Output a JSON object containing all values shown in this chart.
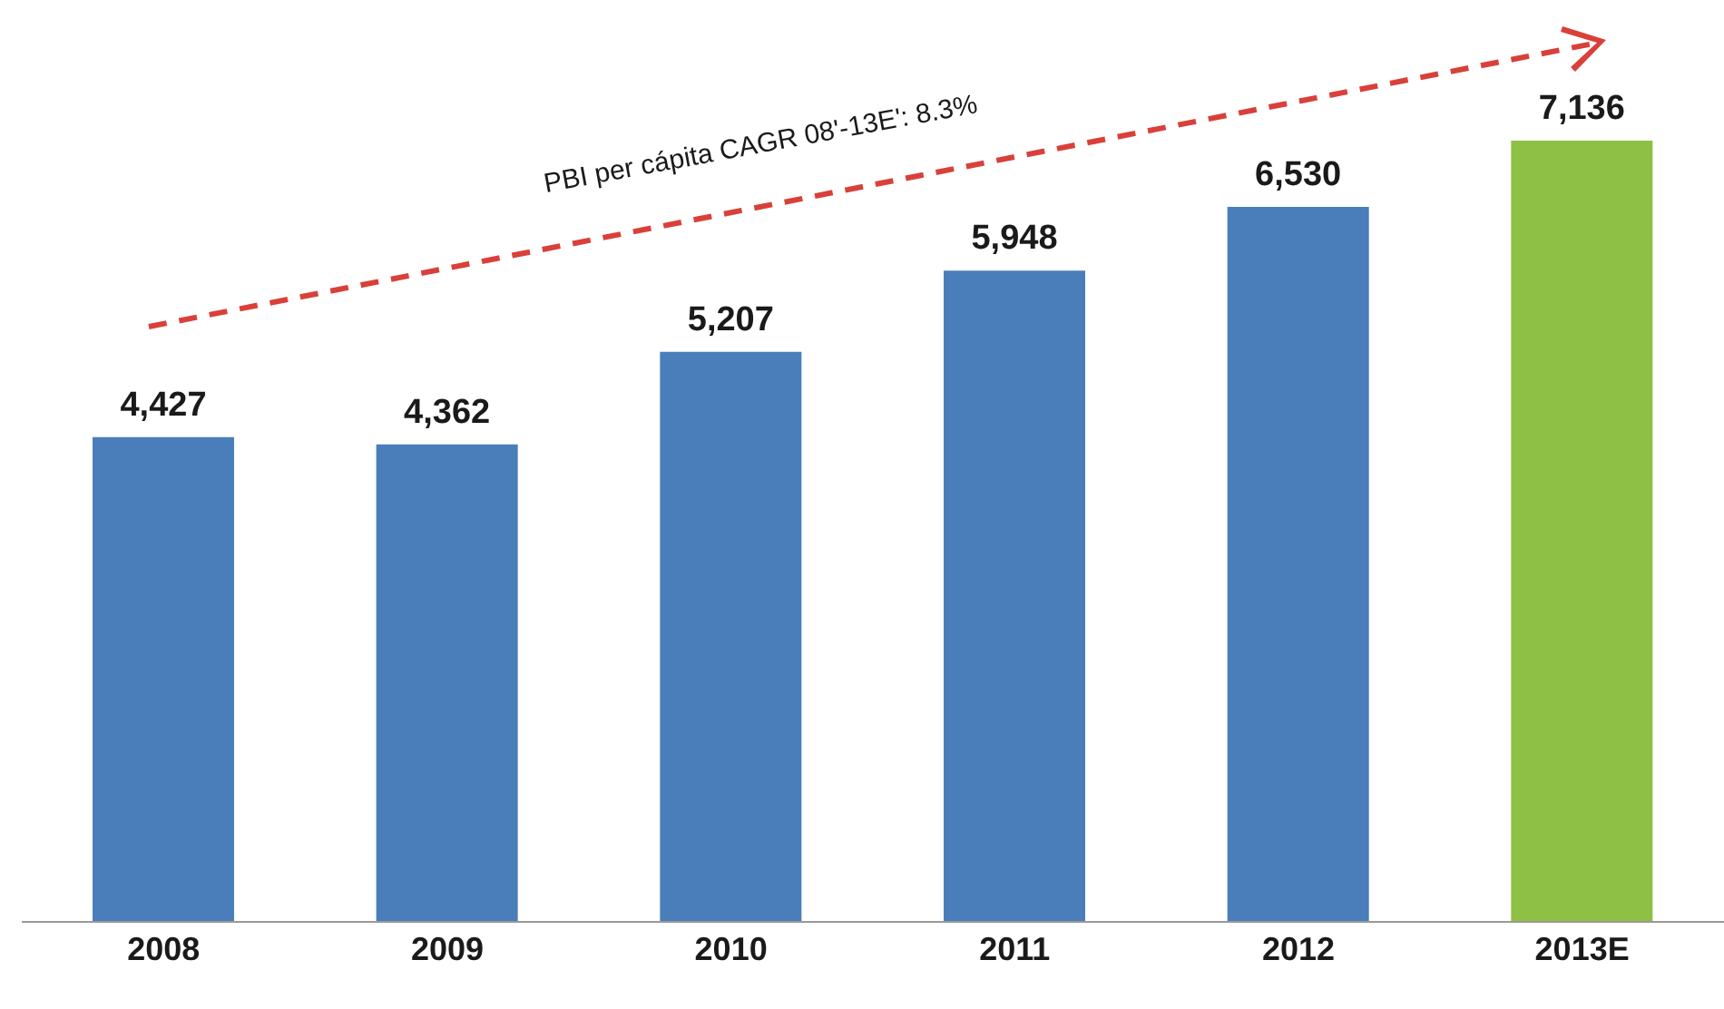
{
  "chart_data": {
    "type": "bar",
    "categories": [
      "2008",
      "2009",
      "2010",
      "2011",
      "2012",
      "2013E"
    ],
    "values": [
      4427,
      4362,
      5207,
      5948,
      6530,
      7136
    ],
    "colors": [
      "#4a7ebb",
      "#4a7ebb",
      "#4a7ebb",
      "#4a7ebb",
      "#4a7ebb",
      "#8dc044"
    ],
    "value_labels": [
      "4,427",
      "4,362",
      "5,207",
      "5,948",
      "6,530",
      "7,136"
    ],
    "annotations": [
      "PBI per cápita CAGR 08'-13E': 8.3%"
    ]
  }
}
